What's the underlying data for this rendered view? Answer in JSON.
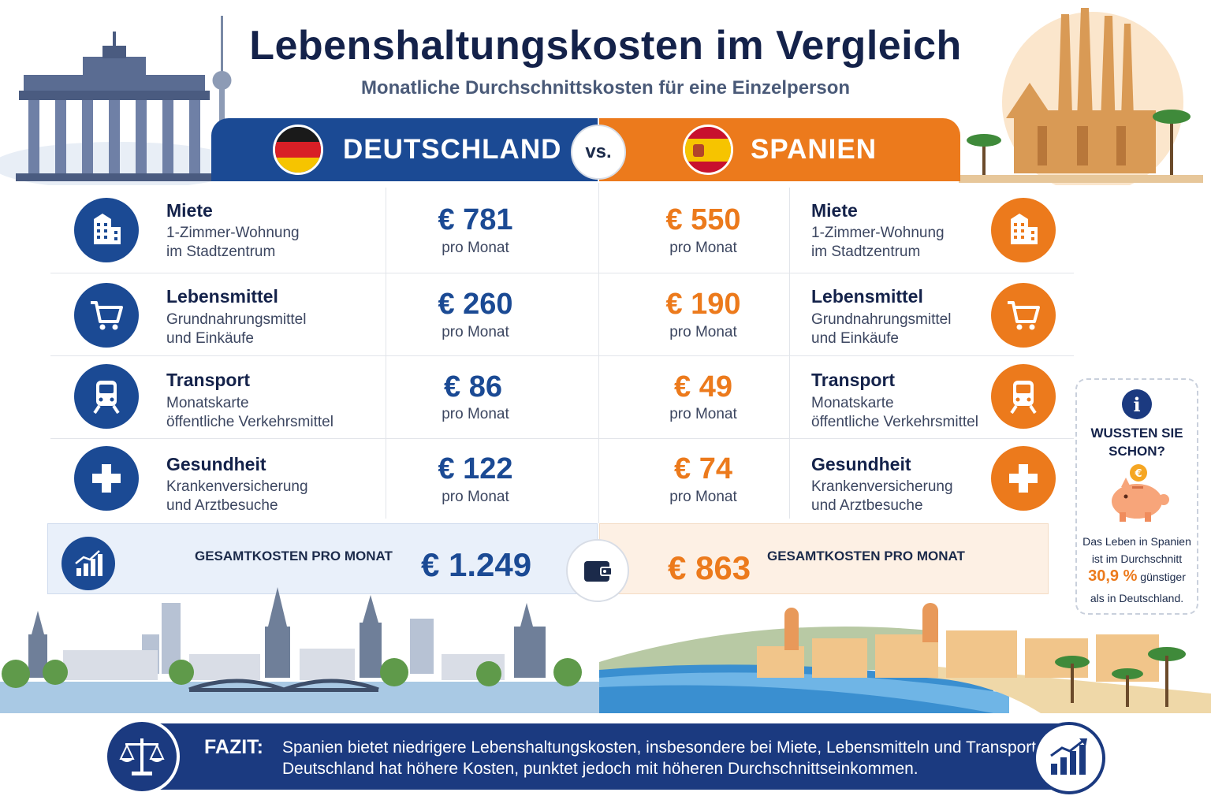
{
  "header": {
    "title": "Lebenshaltungskosten im Vergleich",
    "subtitle": "Monatliche Durchschnittskosten für eine Einzelperson"
  },
  "countries": {
    "left": {
      "name": "DEUTSCHLAND",
      "accent": "#1b4a94"
    },
    "right": {
      "name": "SPANIEN",
      "accent": "#ec7a1c"
    },
    "vs_label": "vs."
  },
  "categories": [
    {
      "icon": "building-icon",
      "title": "Miete",
      "desc1": "1-Zimmer-Wohnung",
      "desc2": "im Stadtzentrum",
      "de_price": "€ 781",
      "es_price": "€ 550",
      "per": "pro Monat"
    },
    {
      "icon": "shopping-cart-icon",
      "title": "Lebensmittel",
      "desc1": "Grundnahrungsmittel",
      "desc2": "und Einkäufe",
      "de_price": "€ 260",
      "es_price": "€ 190",
      "per": "pro Monat"
    },
    {
      "icon": "train-icon",
      "title": "Transport",
      "desc1": "Monatskarte",
      "desc2": "öffentliche Verkehrsmittel",
      "de_price": "€ 86",
      "es_price": "€ 49",
      "per": "pro Monat"
    },
    {
      "icon": "health-cross-icon",
      "title": "Gesundheit",
      "desc1": "Krankenversicherung",
      "desc2": "und Arztbesuche",
      "de_price": "€ 122",
      "es_price": "€ 74",
      "per": "pro Monat"
    }
  ],
  "totals": {
    "label": "GESAMTKOSTEN PRO MONAT",
    "de": "€ 1.249",
    "es": "€ 863"
  },
  "info": {
    "title": "WUSSTEN SIE SCHON?",
    "line1": "Das Leben in Spanien",
    "line2": "ist im Durchschnitt",
    "percent": "30,9 %",
    "after_percent": "günstiger",
    "line4": "als in Deutschland."
  },
  "footer": {
    "label": "FAZIT:",
    "line1": "Spanien bietet niedrigere Lebenshaltungskosten, insbesondere bei Miete, Lebensmitteln und Transport.",
    "line2": "Deutschland hat höhere Kosten, punktet jedoch mit höheren Durchschnittseinkommen."
  }
}
